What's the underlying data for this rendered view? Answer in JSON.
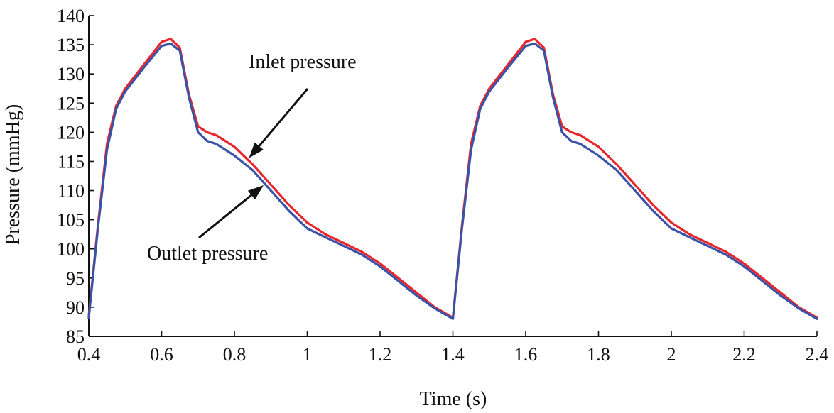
{
  "chart_data": {
    "type": "line",
    "title": "",
    "xlabel": "Time (s)",
    "ylabel": "Pressure (mmHg)",
    "xlim": [
      0.4,
      2.4
    ],
    "ylim": [
      85,
      140
    ],
    "x_ticks": [
      0.4,
      0.6,
      0.8,
      1.0,
      1.2,
      1.4,
      1.6,
      1.8,
      2.0,
      2.2,
      2.4
    ],
    "x_tick_labels": [
      "0.4",
      "0.6",
      "0.8",
      "1",
      "1.2",
      "1.4",
      "1.6",
      "1.8",
      "2",
      "2.2",
      "2.4"
    ],
    "y_ticks": [
      85,
      90,
      95,
      100,
      105,
      110,
      115,
      120,
      125,
      130,
      135,
      140
    ],
    "y_tick_labels": [
      "85",
      "90",
      "95",
      "100",
      "105",
      "110",
      "115",
      "120",
      "125",
      "130",
      "135",
      "140"
    ],
    "grid": false,
    "series": [
      {
        "name": "Inlet pressure",
        "color": "#e8262b",
        "x": [
          0.4,
          0.425,
          0.45,
          0.475,
          0.5,
          0.55,
          0.6,
          0.625,
          0.65,
          0.675,
          0.7,
          0.725,
          0.75,
          0.8,
          0.85,
          0.9,
          0.95,
          1.0,
          1.05,
          1.1,
          1.15,
          1.2,
          1.25,
          1.3,
          1.35,
          1.4,
          1.425,
          1.45,
          1.475,
          1.5,
          1.55,
          1.6,
          1.625,
          1.65,
          1.675,
          1.7,
          1.725,
          1.75,
          1.8,
          1.85,
          1.9,
          1.95,
          2.0,
          2.05,
          2.1,
          2.15,
          2.2,
          2.25,
          2.3,
          2.35,
          2.4
        ],
        "y": [
          88.5,
          104,
          118,
          124.5,
          127.5,
          131.5,
          135.5,
          136,
          134.5,
          126.5,
          121,
          120,
          119.5,
          117.5,
          114.5,
          111,
          107.5,
          104.5,
          102.5,
          101,
          99.5,
          97.5,
          95,
          92.5,
          90,
          88.2,
          104,
          118,
          124.5,
          127.5,
          131.5,
          135.5,
          136,
          134.5,
          126.5,
          121,
          120,
          119.5,
          117.5,
          114.5,
          111,
          107.5,
          104.5,
          102.5,
          101,
          99.5,
          97.5,
          95,
          92.5,
          90,
          88.2
        ]
      },
      {
        "name": "Outlet pressure",
        "color": "#3a53a8",
        "x": [
          0.4,
          0.425,
          0.45,
          0.475,
          0.5,
          0.55,
          0.6,
          0.625,
          0.65,
          0.675,
          0.7,
          0.725,
          0.75,
          0.8,
          0.85,
          0.9,
          0.95,
          1.0,
          1.05,
          1.1,
          1.15,
          1.2,
          1.25,
          1.3,
          1.35,
          1.4,
          1.425,
          1.45,
          1.475,
          1.5,
          1.55,
          1.6,
          1.625,
          1.65,
          1.675,
          1.7,
          1.725,
          1.75,
          1.8,
          1.85,
          1.9,
          1.95,
          2.0,
          2.05,
          2.1,
          2.15,
          2.2,
          2.25,
          2.3,
          2.35,
          2.4
        ],
        "y": [
          88.2,
          103.5,
          117,
          124,
          127,
          131,
          134.8,
          135.2,
          134,
          126,
          120,
          118.5,
          118,
          116,
          113.5,
          110,
          106.5,
          103.5,
          102,
          100.5,
          99,
          97,
          94.5,
          92,
          89.8,
          88,
          103.5,
          117,
          124,
          127,
          131,
          134.8,
          135.2,
          134,
          126,
          120,
          118.5,
          118,
          116,
          113.5,
          110,
          106.5,
          103.5,
          102,
          100.5,
          99,
          97,
          94.5,
          92,
          89.8,
          88
        ]
      }
    ],
    "annotations": [
      {
        "text": "Inlet pressure",
        "target_series": "Inlet pressure",
        "target_x": 0.84
      },
      {
        "text": "Outlet pressure",
        "target_series": "Outlet pressure",
        "target_x": 0.88
      }
    ]
  }
}
